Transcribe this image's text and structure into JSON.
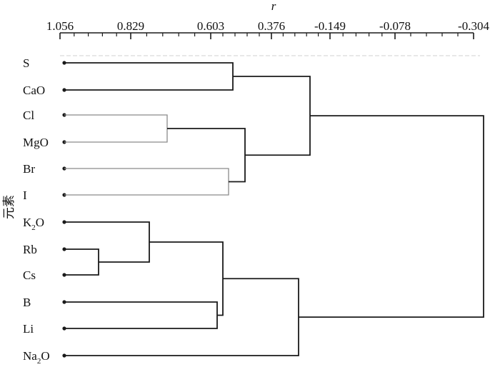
{
  "axis": {
    "title": "r",
    "ticks": [
      "1.056",
      "0.829",
      "0.603",
      "0.376",
      "-0.149",
      "-0.078",
      "-0.304"
    ]
  },
  "ylabel": "元素",
  "leaves": [
    {
      "main": "S"
    },
    {
      "main": "CaO"
    },
    {
      "main": "Cl"
    },
    {
      "main": "MgO"
    },
    {
      "main": "Br"
    },
    {
      "main": "I"
    },
    {
      "main": "K",
      "sub": "2",
      "tail": "O"
    },
    {
      "main": "Rb"
    },
    {
      "main": "Cs"
    },
    {
      "main": "B"
    },
    {
      "main": "Li"
    },
    {
      "main": "Na",
      "sub": "2",
      "tail": "O"
    }
  ],
  "colors": {
    "line": "#1a1a1a",
    "thin_line": "#8a8a8a",
    "text": "#111111"
  }
}
